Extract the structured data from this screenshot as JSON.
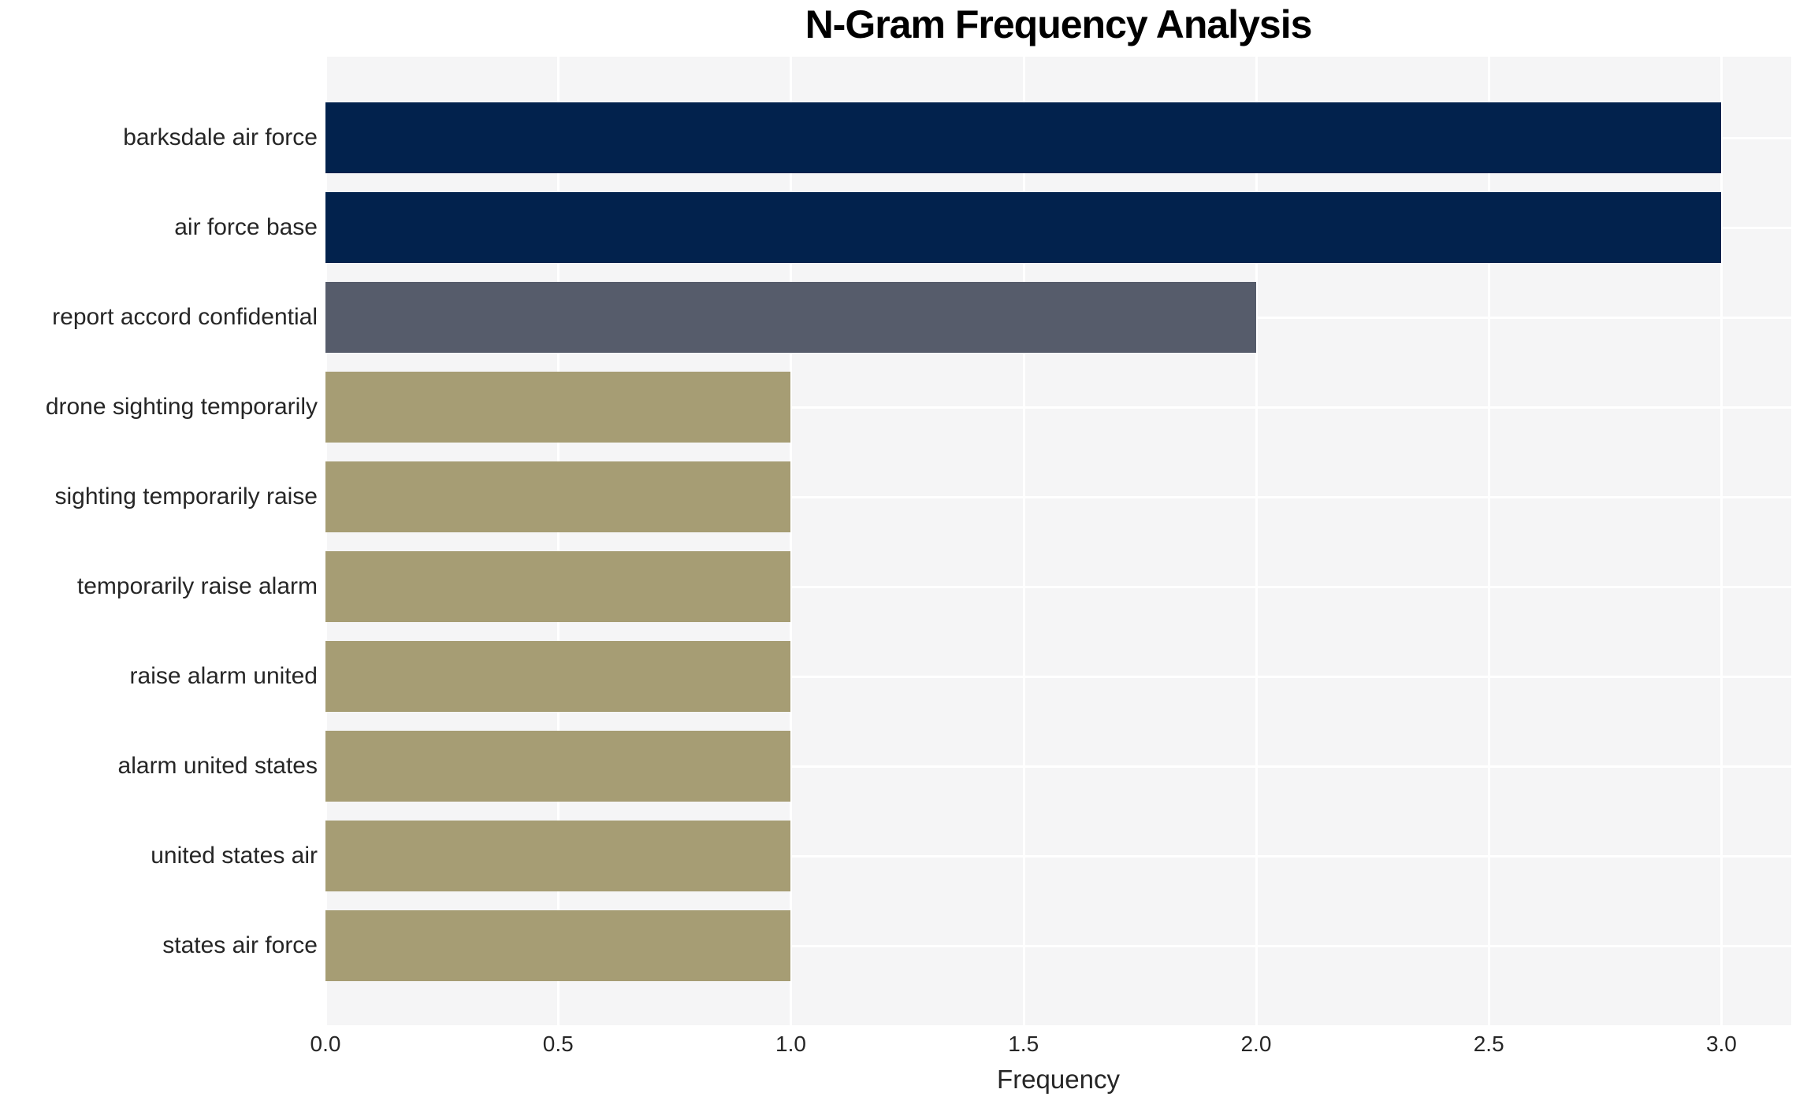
{
  "chart_data": {
    "type": "bar",
    "orientation": "horizontal",
    "title": "N-Gram Frequency Analysis",
    "xlabel": "Frequency",
    "ylabel": "",
    "categories": [
      "barksdale air force",
      "air force base",
      "report accord confidential",
      "drone sighting temporarily",
      "sighting temporarily raise",
      "temporarily raise alarm",
      "raise alarm united",
      "alarm united states",
      "united states air",
      "states air force"
    ],
    "values": [
      3,
      3,
      2,
      1,
      1,
      1,
      1,
      1,
      1,
      1
    ],
    "xlim": [
      0,
      3.15
    ],
    "x_ticks": [
      0,
      0.5,
      1,
      1.5,
      2,
      2.5,
      3
    ],
    "x_tick_labels": [
      "0.0",
      "0.5",
      "1.0",
      "1.5",
      "2.0",
      "2.5",
      "3.0"
    ],
    "legend": "none",
    "grid": "white gridlines (vertical at ticks, horizontal at category centers) on light panel",
    "colors_by_value": {
      "3": "#02224d",
      "2": "#565c6b",
      "1": "#a69d74"
    },
    "plot_background": "#f5f5f6",
    "grid_color": "#ffffff",
    "text_color": "#262626",
    "title_color": "#000000"
  }
}
